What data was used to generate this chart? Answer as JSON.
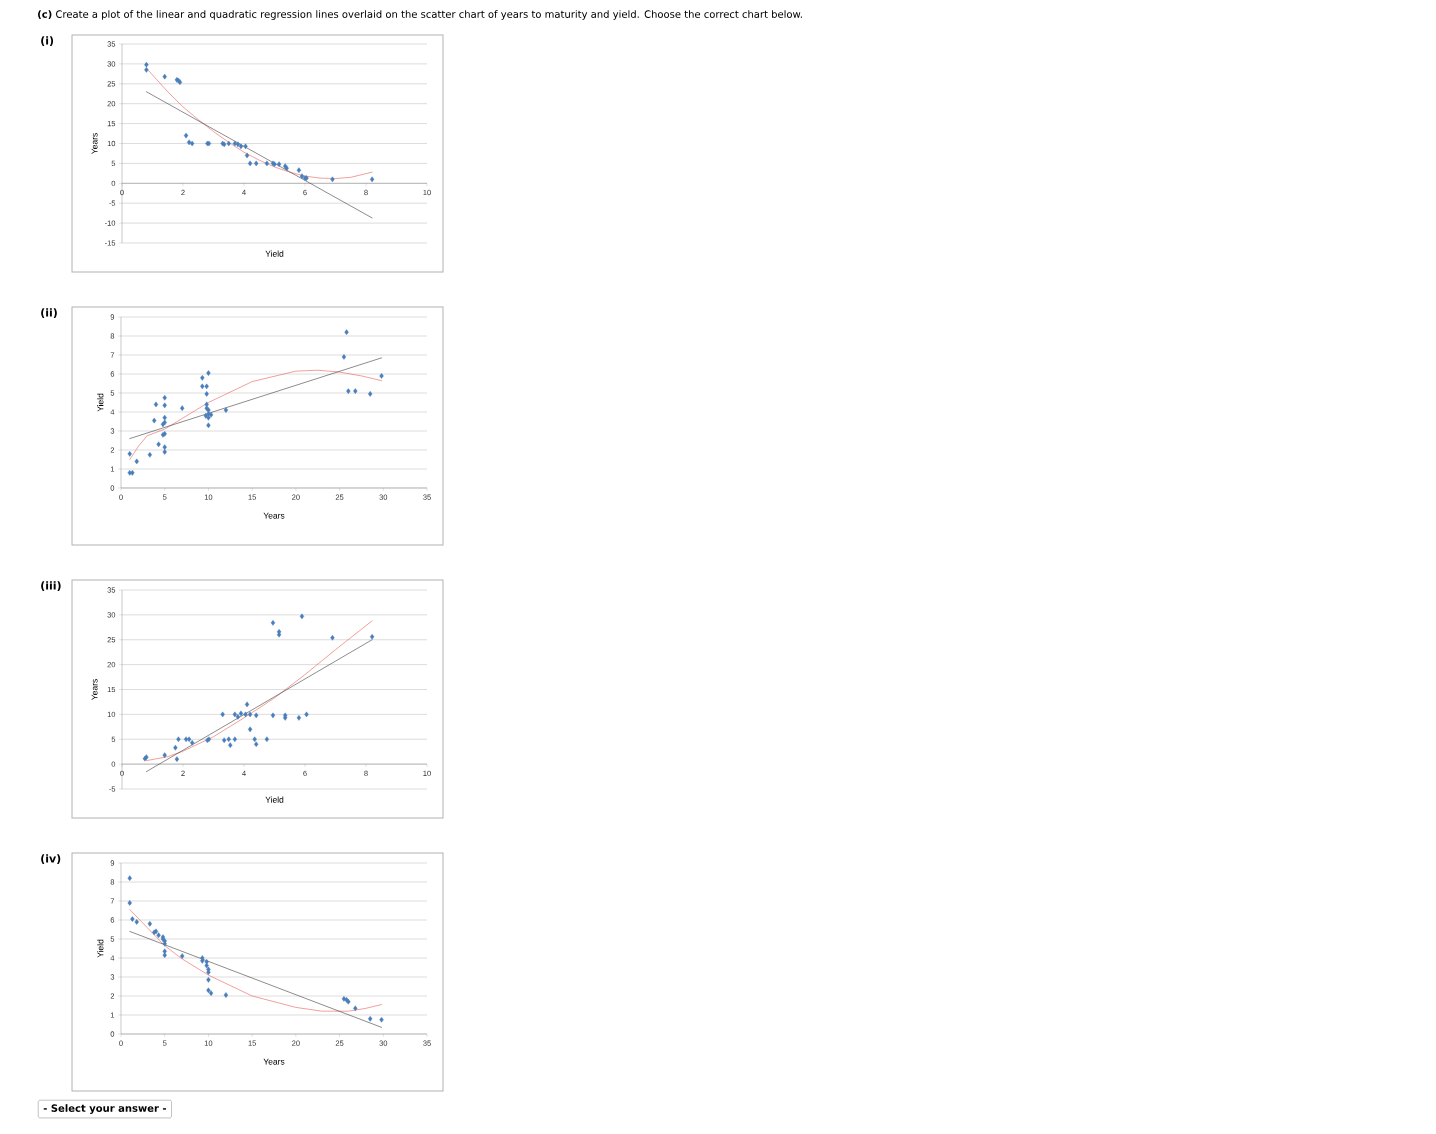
{
  "chart_data": [
    {
      "type": "scatter",
      "title": "(i)",
      "xlabel": "Yield",
      "ylabel": "Years",
      "xlim": [
        0,
        10
      ],
      "ylim": [
        -15,
        35
      ],
      "xticks": [
        0,
        2,
        4,
        6,
        8,
        10
      ],
      "yticks": [
        -15,
        -10,
        -5,
        0,
        5,
        10,
        15,
        20,
        25,
        30,
        35
      ],
      "grid": "y",
      "annotations": [
        "**(c)** Create a plot of the linear and quadratic regression lines overlaid on the scatter chart of years to maturity and yield. Choose the correct chart below."
      ],
      "series": [
        {
          "type": "scatter",
          "marker": "diamond",
          "color": "#4a7ebb",
          "x": [
            0.8,
            0.8,
            1.4,
            1.8,
            1.85,
            1.9,
            2.1,
            2.2,
            2.3,
            2.8,
            2.85,
            3.3,
            3.35,
            3.5,
            3.7,
            3.8,
            3.9,
            4.05,
            4.1,
            4.2,
            4.4,
            4.75,
            4.95,
            5.0,
            5.15,
            5.35,
            5.4,
            5.8,
            5.9,
            6.0,
            6.05,
            6.9,
            8.2
          ],
          "values": [
            29.8,
            28.5,
            26.8,
            26,
            25.8,
            25.4,
            12,
            10.3,
            10,
            10,
            10,
            10,
            9.8,
            10,
            10,
            9.8,
            9.3,
            9.3,
            7,
            5,
            5,
            5,
            5,
            4.8,
            4.8,
            4.3,
            3.8,
            3.3,
            1.8,
            1.3,
            1.3,
            1,
            1
          ]
        },
        {
          "type": "line",
          "color": "#e8605a",
          "x": [
            0.85,
            1.5,
            2,
            2.5,
            3,
            3.5,
            4,
            4.5,
            5,
            5.5,
            6,
            6.5,
            7,
            7.5,
            8.2
          ],
          "values": [
            28.5,
            23,
            19.2,
            16,
            13,
            10.3,
            7.8,
            5.8,
            4.1,
            2.8,
            1.8,
            1.3,
            1.2,
            1.5,
            2.8
          ]
        },
        {
          "type": "line",
          "color": "#404040",
          "x": [
            0.8,
            8.2
          ],
          "values": [
            23,
            -8.7
          ]
        }
      ]
    },
    {
      "type": "scatter",
      "title": "(ii)",
      "xlabel": "Years",
      "ylabel": "Yield",
      "xlim": [
        0,
        35
      ],
      "ylim": [
        0,
        9
      ],
      "xticks": [
        0,
        5,
        10,
        15,
        20,
        25,
        30,
        35
      ],
      "yticks": [
        0,
        1,
        2,
        3,
        4,
        5,
        6,
        7,
        8,
        9
      ],
      "grid": "y",
      "series": [
        {
          "type": "scatter",
          "marker": "diamond",
          "color": "#4a7ebb",
          "x": [
            1,
            1,
            1.3,
            1.8,
            3.3,
            3.8,
            4,
            4.3,
            4.8,
            4.8,
            5,
            5,
            5,
            5,
            5,
            5,
            5,
            7,
            9.3,
            9.3,
            9.8,
            9.8,
            9.8,
            9.8,
            9.7,
            10,
            10,
            10,
            10,
            10,
            10.3,
            12,
            25.5,
            25.8,
            26,
            26.8,
            28.5,
            29.8
          ],
          "values": [
            1.8,
            0.8,
            0.8,
            1.4,
            1.75,
            3.55,
            4.4,
            2.3,
            3.35,
            2.8,
            2.85,
            3.7,
            4.35,
            4.75,
            3.45,
            2.15,
            1.9,
            4.2,
            5.8,
            5.35,
            5.35,
            4.95,
            4.4,
            4.2,
            3.8,
            6.05,
            4.1,
            3.9,
            3.7,
            3.3,
            3.85,
            4.1,
            6.9,
            8.2,
            5.1,
            5.1,
            4.95,
            5.9
          ]
        },
        {
          "type": "line",
          "color": "#e8605a",
          "x": [
            1,
            2,
            3,
            5,
            10,
            15,
            20,
            22.5,
            25,
            27.5,
            29.8
          ],
          "values": [
            1.5,
            2.2,
            2.75,
            3.1,
            4.5,
            5.6,
            6.15,
            6.2,
            6.1,
            5.9,
            5.65
          ]
        },
        {
          "type": "line",
          "color": "#404040",
          "x": [
            1,
            29.8
          ],
          "values": [
            2.6,
            6.85
          ]
        }
      ]
    },
    {
      "type": "scatter",
      "title": "(iii)",
      "xlabel": "Yield",
      "ylabel": "Years",
      "xlim": [
        0,
        10
      ],
      "ylim": [
        -5,
        35
      ],
      "xticks": [
        0,
        2,
        4,
        6,
        8,
        10
      ],
      "yticks": [
        -5,
        0,
        5,
        10,
        15,
        20,
        25,
        30,
        35
      ],
      "grid": "y",
      "series": [
        {
          "type": "scatter",
          "marker": "diamond",
          "color": "#4a7ebb",
          "x": [
            0.75,
            0.8,
            1.4,
            1.75,
            1.8,
            1.85,
            2.1,
            2.2,
            2.3,
            2.8,
            2.85,
            3.3,
            3.35,
            3.5,
            3.55,
            3.7,
            3.7,
            3.8,
            3.9,
            4.05,
            4.1,
            4.2,
            4.2,
            4.35,
            4.4,
            4.4,
            4.75,
            4.95,
            4.95,
            5.15,
            5.15,
            5.35,
            5.35,
            5.8,
            5.9,
            6.05,
            6.9,
            8.2
          ],
          "values": [
            1.1,
            1.4,
            1.8,
            3.3,
            1,
            5,
            5,
            5,
            4.3,
            4.8,
            5,
            10,
            4.8,
            5,
            3.8,
            5,
            10,
            9.5,
            10.2,
            10,
            12,
            10,
            7,
            5,
            4,
            9.8,
            5,
            9.8,
            28.4,
            26.6,
            26,
            9.8,
            9.3,
            9.3,
            29.7,
            10,
            25.4,
            25.6
          ]
        },
        {
          "type": "line",
          "color": "#e8605a",
          "x": [
            0.8,
            1.5,
            2,
            3,
            4,
            5,
            6,
            7,
            8.2
          ],
          "values": [
            0.7,
            1.5,
            2.6,
            5.5,
            9.3,
            13.3,
            18,
            23,
            28.8
          ]
        },
        {
          "type": "line",
          "color": "#404040",
          "x": [
            0.8,
            8.2
          ],
          "values": [
            -1.5,
            25
          ]
        }
      ]
    },
    {
      "type": "scatter",
      "title": "(iv)",
      "xlabel": "Years",
      "ylabel": "Yield",
      "xlim": [
        0,
        35
      ],
      "ylim": [
        0,
        9
      ],
      "xticks": [
        0,
        5,
        10,
        15,
        20,
        25,
        30,
        35
      ],
      "yticks": [
        0,
        1,
        2,
        3,
        4,
        5,
        6,
        7,
        8,
        9
      ],
      "grid": "y",
      "annotations": [
        "- Select your answer -"
      ],
      "series": [
        {
          "type": "scatter",
          "marker": "diamond",
          "color": "#4a7ebb",
          "x": [
            1,
            1,
            1.3,
            1.8,
            3.3,
            3.8,
            4,
            4.3,
            4.8,
            4.8,
            5,
            5,
            5,
            5,
            7,
            9.3,
            9.3,
            9.8,
            9.8,
            10,
            10,
            10,
            10,
            10.3,
            12,
            25.5,
            25.8,
            26,
            26.8,
            28.5,
            29.8
          ],
          "values": [
            8.2,
            6.9,
            6.05,
            5.9,
            5.8,
            5.35,
            5.4,
            5.2,
            5.1,
            5.0,
            4.9,
            4.75,
            4.35,
            4.15,
            4.1,
            4.0,
            3.85,
            3.8,
            3.6,
            3.4,
            3.25,
            2.85,
            2.3,
            2.15,
            2.05,
            1.85,
            1.8,
            1.7,
            1.35,
            0.8,
            0.75
          ]
        },
        {
          "type": "line",
          "color": "#e8605a",
          "x": [
            1,
            3,
            5,
            7,
            10,
            15,
            20,
            23,
            26,
            28,
            29.8
          ],
          "values": [
            6.55,
            5.6,
            4.65,
            3.95,
            3.1,
            2.0,
            1.4,
            1.2,
            1.2,
            1.35,
            1.55
          ]
        },
        {
          "type": "line",
          "color": "#404040",
          "x": [
            1,
            29.8
          ],
          "values": [
            5.4,
            0.35
          ]
        }
      ]
    }
  ]
}
